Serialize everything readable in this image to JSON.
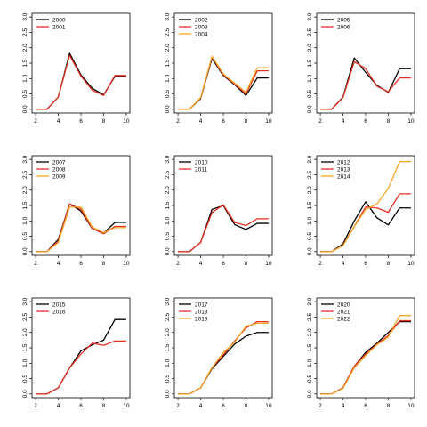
{
  "colors": {
    "black": "#000000",
    "red": "#e8301f",
    "orange": "#f5a623"
  },
  "chart_data": [
    {
      "type": "line",
      "x": [
        2,
        3,
        4,
        5,
        6,
        7,
        8,
        9,
        10
      ],
      "xticks": [
        2,
        4,
        6,
        8,
        10
      ],
      "yticks": [
        "0.0",
        "0.5",
        "1.0",
        "1.5",
        "2.0",
        "2.5",
        "3.0"
      ],
      "xlim": [
        2,
        10
      ],
      "ylim": [
        0,
        3
      ],
      "legend_position": "top-left",
      "series": [
        {
          "name": "2000",
          "color": "black",
          "values": [
            0,
            0,
            0.4,
            1.82,
            1.12,
            0.68,
            0.47,
            1.07,
            1.07
          ]
        },
        {
          "name": "2001",
          "color": "red",
          "values": [
            0,
            0,
            0.4,
            1.75,
            1.08,
            0.62,
            0.45,
            1.1,
            1.1
          ]
        }
      ]
    },
    {
      "type": "line",
      "x": [
        2,
        3,
        4,
        5,
        6,
        7,
        8,
        9,
        10
      ],
      "xticks": [
        2,
        4,
        6,
        8,
        10
      ],
      "yticks": [
        "0.0",
        "0.5",
        "1.0",
        "1.5",
        "2.0",
        "2.5",
        "3.0"
      ],
      "xlim": [
        2,
        10
      ],
      "ylim": [
        0,
        3
      ],
      "legend_position": "top-left",
      "series": [
        {
          "name": "2002",
          "color": "black",
          "values": [
            0,
            0,
            0.35,
            1.65,
            1.1,
            0.8,
            0.45,
            1.02,
            1.02
          ]
        },
        {
          "name": "2003",
          "color": "red",
          "values": [
            0,
            0,
            0.37,
            1.7,
            1.12,
            0.82,
            0.5,
            1.25,
            1.25
          ]
        },
        {
          "name": "2004",
          "color": "orange",
          "values": [
            0,
            0,
            0.38,
            1.72,
            1.15,
            0.85,
            0.55,
            1.35,
            1.35
          ]
        }
      ]
    },
    {
      "type": "line",
      "x": [
        2,
        3,
        4,
        5,
        6,
        7,
        8,
        9,
        10
      ],
      "xticks": [
        2,
        4,
        6,
        8,
        10
      ],
      "yticks": [
        "0.0",
        "0.5",
        "1.0",
        "1.5",
        "2.0",
        "2.5",
        "3.0"
      ],
      "xlim": [
        2,
        10
      ],
      "ylim": [
        0,
        3
      ],
      "legend_position": "top-left",
      "series": [
        {
          "name": "2005",
          "color": "black",
          "values": [
            0,
            0,
            0.4,
            1.67,
            1.2,
            0.78,
            0.55,
            1.32,
            1.32
          ]
        },
        {
          "name": "2006",
          "color": "red",
          "values": [
            0,
            0,
            0.38,
            1.55,
            1.32,
            0.75,
            0.57,
            1.02,
            1.02
          ]
        }
      ]
    },
    {
      "type": "line",
      "x": [
        2,
        3,
        4,
        5,
        6,
        7,
        8,
        9,
        10
      ],
      "xticks": [
        2,
        4,
        6,
        8,
        10
      ],
      "yticks": [
        "0.0",
        "0.5",
        "1.0",
        "1.5",
        "2.0",
        "2.5",
        "3.0"
      ],
      "xlim": [
        2,
        10
      ],
      "ylim": [
        0,
        3
      ],
      "legend_position": "top-left",
      "series": [
        {
          "name": "2007",
          "color": "black",
          "values": [
            0,
            0,
            0.4,
            1.55,
            1.32,
            0.75,
            0.6,
            0.95,
            0.95
          ]
        },
        {
          "name": "2008",
          "color": "red",
          "values": [
            0,
            0,
            0.35,
            1.55,
            1.38,
            0.75,
            0.58,
            0.82,
            0.82
          ]
        },
        {
          "name": "2009",
          "color": "orange",
          "values": [
            0,
            0,
            0.3,
            1.45,
            1.45,
            0.8,
            0.62,
            0.78,
            0.78
          ]
        }
      ]
    },
    {
      "type": "line",
      "x": [
        2,
        3,
        4,
        5,
        6,
        7,
        8,
        9,
        10
      ],
      "xticks": [
        2,
        4,
        6,
        8,
        10
      ],
      "yticks": [
        "0.0",
        "0.5",
        "1.0",
        "1.5",
        "2.0",
        "2.5",
        "3.0"
      ],
      "xlim": [
        2,
        10
      ],
      "ylim": [
        0,
        3
      ],
      "legend_position": "top-left",
      "series": [
        {
          "name": "2010",
          "color": "black",
          "values": [
            0,
            0,
            0.3,
            1.37,
            1.5,
            0.88,
            0.72,
            0.92,
            0.92
          ]
        },
        {
          "name": "2011",
          "color": "red",
          "values": [
            0,
            0,
            0.3,
            1.27,
            1.52,
            0.95,
            0.85,
            1.07,
            1.07
          ]
        }
      ]
    },
    {
      "type": "line",
      "x": [
        2,
        3,
        4,
        5,
        6,
        7,
        8,
        9,
        10
      ],
      "xticks": [
        2,
        4,
        6,
        8,
        10
      ],
      "yticks": [
        "0.0",
        "0.5",
        "1.0",
        "1.5",
        "2.0",
        "2.5",
        "3.0"
      ],
      "xlim": [
        2,
        10
      ],
      "ylim": [
        0,
        3
      ],
      "legend_position": "top-left",
      "series": [
        {
          "name": "2012",
          "color": "black",
          "values": [
            0,
            0,
            0.25,
            1.0,
            1.62,
            1.1,
            0.87,
            1.42,
            1.42
          ]
        },
        {
          "name": "2013",
          "color": "red",
          "values": [
            0,
            0,
            0.2,
            0.82,
            1.45,
            1.42,
            1.28,
            1.88,
            1.88
          ]
        },
        {
          "name": "2014",
          "color": "orange",
          "values": [
            0,
            0,
            0.2,
            0.82,
            1.37,
            1.55,
            2.05,
            2.93,
            2.93
          ]
        }
      ]
    },
    {
      "type": "line",
      "x": [
        2,
        3,
        4,
        5,
        6,
        7,
        8,
        9,
        10
      ],
      "xticks": [
        2,
        4,
        6,
        8,
        10
      ],
      "yticks": [
        "0.0",
        "0.5",
        "1.0",
        "1.5",
        "2.0",
        "2.5",
        "3.0"
      ],
      "xlim": [
        2,
        10
      ],
      "ylim": [
        0,
        3
      ],
      "legend_position": "top-left",
      "series": [
        {
          "name": "2015",
          "color": "black",
          "values": [
            0,
            0,
            0.2,
            0.85,
            1.4,
            1.6,
            1.75,
            2.42,
            2.42
          ]
        },
        {
          "name": "2016",
          "color": "red",
          "values": [
            0,
            0,
            0.2,
            0.85,
            1.3,
            1.65,
            1.58,
            1.72,
            1.72
          ]
        }
      ]
    },
    {
      "type": "line",
      "x": [
        2,
        3,
        4,
        5,
        6,
        7,
        8,
        9,
        10
      ],
      "xticks": [
        2,
        4,
        6,
        8,
        10
      ],
      "yticks": [
        "0.0",
        "0.5",
        "1.0",
        "1.5",
        "2.0",
        "2.5",
        "3.0"
      ],
      "xlim": [
        2,
        10
      ],
      "ylim": [
        0,
        3
      ],
      "legend_position": "top-left",
      "series": [
        {
          "name": "2017",
          "color": "black",
          "values": [
            0,
            0,
            0.2,
            0.82,
            1.22,
            1.62,
            1.88,
            2.0,
            2.0
          ]
        },
        {
          "name": "2018",
          "color": "red",
          "values": [
            0,
            0,
            0.2,
            0.85,
            1.27,
            1.72,
            2.15,
            2.35,
            2.35
          ]
        },
        {
          "name": "2019",
          "color": "orange",
          "values": [
            0,
            0,
            0.2,
            0.85,
            1.35,
            1.68,
            2.2,
            2.3,
            2.3
          ]
        }
      ]
    },
    {
      "type": "line",
      "x": [
        2,
        3,
        4,
        5,
        6,
        7,
        8,
        9,
        10
      ],
      "xticks": [
        2,
        4,
        6,
        8,
        10
      ],
      "yticks": [
        "0.0",
        "0.5",
        "1.0",
        "1.5",
        "2.0",
        "2.5",
        "3.0"
      ],
      "xlim": [
        2,
        10
      ],
      "ylim": [
        0,
        3
      ],
      "legend_position": "top-left",
      "series": [
        {
          "name": "2020",
          "color": "black",
          "values": [
            0,
            0,
            0.2,
            0.9,
            1.35,
            1.65,
            2.0,
            2.35,
            2.35
          ]
        },
        {
          "name": "2021",
          "color": "red",
          "values": [
            0,
            0,
            0.2,
            0.9,
            1.3,
            1.62,
            1.9,
            2.38,
            2.38
          ]
        },
        {
          "name": "2022",
          "color": "orange",
          "values": [
            0,
            0,
            0.18,
            0.85,
            1.25,
            1.6,
            1.85,
            2.55,
            2.55
          ]
        }
      ]
    }
  ]
}
